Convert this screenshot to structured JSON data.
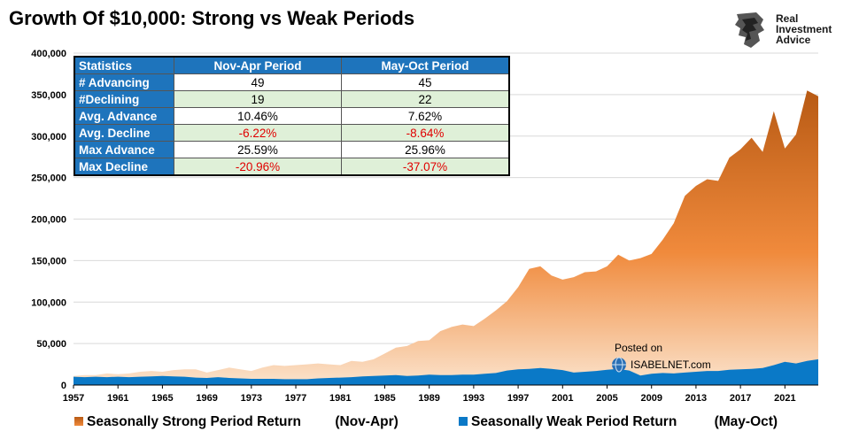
{
  "title": "Growth Of $10,000:  Strong vs Weak Periods",
  "logo": {
    "icon": "lion-head-icon",
    "lines": [
      "Real",
      "Investment",
      "Advice"
    ]
  },
  "stats_table": {
    "headers": [
      "Statistics",
      "Nov-Apr Period",
      "May-Oct Period"
    ],
    "rows": [
      {
        "label": "# Advancing",
        "nov_apr": "49",
        "may_oct": "45",
        "negative": false
      },
      {
        "label": "#Declining",
        "nov_apr": "19",
        "may_oct": "22",
        "negative": false
      },
      {
        "label": "Avg. Advance",
        "nov_apr": "10.46%",
        "may_oct": "7.62%",
        "negative": false
      },
      {
        "label": "Avg. Decline",
        "nov_apr": "-6.22%",
        "may_oct": "-8.64%",
        "negative": true
      },
      {
        "label": "Max Advance",
        "nov_apr": "25.59%",
        "may_oct": "25.96%",
        "negative": false
      },
      {
        "label": "Max Decline",
        "nov_apr": "-20.96%",
        "may_oct": "-37.07%",
        "negative": true
      }
    ]
  },
  "posted": {
    "label": "Posted on",
    "site": "ISABELNET.com"
  },
  "legend": [
    {
      "label": "Seasonally Strong Period Return",
      "period": "(Nov-Apr)"
    },
    {
      "label": "Seasonally Weak Period Return",
      "period": "(May-Oct)"
    }
  ],
  "colors": {
    "strong_top": "#b85a14",
    "strong_mid": "#f08a3c",
    "strong_bottom": "#fbe3cc",
    "weak": "#0a79c7",
    "header": "#1e74bc",
    "negative": "#e00000",
    "alt_row": "#dff0d8"
  },
  "chart_data": {
    "type": "area",
    "xlabel": "",
    "ylabel": "",
    "ylim": [
      0,
      400000
    ],
    "xlim": [
      1957,
      2024
    ],
    "yticks": [
      0,
      50000,
      100000,
      150000,
      200000,
      250000,
      300000,
      350000,
      400000
    ],
    "ytick_labels": [
      "0",
      "50,000",
      "100,000",
      "150,000",
      "200,000",
      "250,000",
      "300,000",
      "350,000",
      "400,000"
    ],
    "xtick_labels": [
      "1957",
      "1961",
      "1965",
      "1969",
      "1973",
      "1977",
      "1981",
      "1985",
      "1989",
      "1993",
      "1997",
      "2001",
      "2005",
      "2009",
      "2013",
      "2017",
      "2021"
    ],
    "x": [
      1957,
      1958,
      1959,
      1960,
      1961,
      1962,
      1963,
      1964,
      1965,
      1966,
      1967,
      1968,
      1969,
      1970,
      1971,
      1972,
      1973,
      1974,
      1975,
      1976,
      1977,
      1978,
      1979,
      1980,
      1981,
      1982,
      1983,
      1984,
      1985,
      1986,
      1987,
      1988,
      1989,
      1990,
      1991,
      1992,
      1993,
      1994,
      1995,
      1996,
      1997,
      1998,
      1999,
      2000,
      2001,
      2002,
      2003,
      2004,
      2005,
      2006,
      2007,
      2008,
      2009,
      2010,
      2011,
      2012,
      2013,
      2014,
      2015,
      2016,
      2017,
      2018,
      2019,
      2020,
      2021,
      2022,
      2023,
      2024
    ],
    "series": [
      {
        "name": "Seasonally Strong Period Return (Nov-Apr)",
        "values": [
          11000,
          12000,
          12000,
          14000,
          13000,
          14000,
          16000,
          17000,
          16000,
          18000,
          19000,
          19000,
          15000,
          18000,
          21000,
          19000,
          17000,
          21000,
          24000,
          23000,
          24000,
          25000,
          26000,
          25000,
          24000,
          29000,
          28000,
          31000,
          38000,
          45000,
          47000,
          53000,
          54000,
          65000,
          70000,
          73000,
          71000,
          80000,
          90000,
          101000,
          118000,
          140000,
          143000,
          132000,
          127000,
          130000,
          136000,
          137000,
          143000,
          157000,
          150000,
          153000,
          158000,
          175000,
          195000,
          228000,
          240000,
          248000,
          246000,
          274000,
          284000,
          298000,
          281000,
          330000,
          285000,
          302000,
          355000,
          348000
        ]
      },
      {
        "name": "Seasonally Weak Period Return (May-Oct)",
        "values": [
          10000,
          9500,
          10000,
          9500,
          10000,
          9500,
          10000,
          10500,
          11000,
          10500,
          10000,
          9000,
          8500,
          9500,
          8500,
          8000,
          7500,
          7500,
          7500,
          7000,
          7000,
          7000,
          8000,
          8500,
          9000,
          9500,
          10500,
          11000,
          11500,
          12000,
          11000,
          11500,
          12500,
          12000,
          12000,
          12500,
          12500,
          13500,
          14500,
          17500,
          19000,
          19500,
          20500,
          19500,
          18000,
          15000,
          16000,
          17000,
          18500,
          19500,
          17500,
          11500,
          13500,
          14500,
          14000,
          15000,
          16000,
          17000,
          17000,
          18500,
          19000,
          19500,
          20500,
          24000,
          28000,
          26000,
          29000,
          31000
        ]
      }
    ]
  }
}
